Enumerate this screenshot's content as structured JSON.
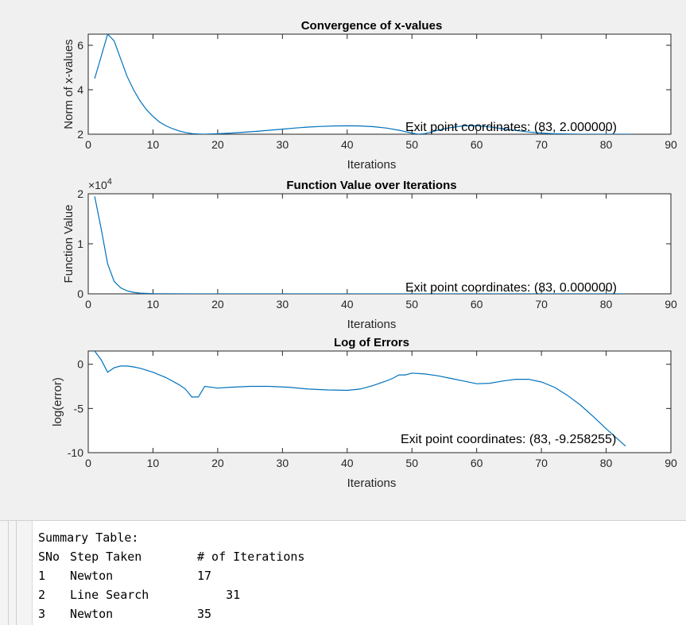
{
  "chart_data": [
    {
      "type": "line",
      "title": "Convergence of x-values",
      "xlabel": "Iterations",
      "ylabel": "Norm of x-values",
      "xlim": [
        0,
        90
      ],
      "ylim": [
        2,
        6.5
      ],
      "xticks": [
        0,
        10,
        20,
        30,
        40,
        50,
        60,
        70,
        80,
        90
      ],
      "yticks": [
        2,
        4,
        6
      ],
      "color": "#0072BD",
      "x": [
        1,
        2,
        3,
        4,
        5,
        6,
        7,
        8,
        9,
        10,
        11,
        12,
        13,
        14,
        15,
        16,
        17,
        18,
        20,
        22,
        24,
        26,
        28,
        30,
        32,
        34,
        36,
        38,
        40,
        42,
        44,
        46,
        48,
        50,
        51,
        52,
        53,
        54,
        56,
        58,
        60,
        62,
        64,
        66,
        68,
        70,
        72,
        74,
        76,
        78,
        80,
        82,
        84
      ],
      "y": [
        4.5,
        5.5,
        6.5,
        6.2,
        5.4,
        4.6,
        4.0,
        3.5,
        3.1,
        2.8,
        2.55,
        2.38,
        2.25,
        2.15,
        2.08,
        2.03,
        2.01,
        2.0,
        2.02,
        2.05,
        2.09,
        2.13,
        2.18,
        2.23,
        2.28,
        2.32,
        2.35,
        2.37,
        2.38,
        2.37,
        2.34,
        2.28,
        2.18,
        2.05,
        2.0,
        2.03,
        2.1,
        2.18,
        2.3,
        2.38,
        2.38,
        2.33,
        2.25,
        2.17,
        2.1,
        2.05,
        2.02,
        2.01,
        2.0,
        2.0,
        2.0,
        2.0,
        2.0
      ],
      "annotation": "Exit point coordinates: (83, 2.000000)"
    },
    {
      "type": "line",
      "title": "Function Value over Iterations",
      "xlabel": "Iterations",
      "ylabel": "Function Value",
      "y_multiplier": "×10",
      "y_exponent": "4",
      "xlim": [
        0,
        90
      ],
      "ylim": [
        0,
        2
      ],
      "xticks": [
        0,
        10,
        20,
        30,
        40,
        50,
        60,
        70,
        80,
        90
      ],
      "yticks": [
        0,
        1,
        2
      ],
      "color": "#0072BD",
      "x": [
        1,
        2,
        3,
        4,
        5,
        6,
        7,
        8,
        10,
        12,
        15,
        20,
        30,
        40,
        50,
        60,
        70,
        80,
        83
      ],
      "y": [
        1.95,
        1.3,
        0.6,
        0.25,
        0.12,
        0.06,
        0.03,
        0.015,
        0.005,
        0.002,
        0.0005,
        0,
        0,
        0,
        0,
        0,
        0,
        0,
        0
      ],
      "annotation": "Exit point coordinates: (83, 0.000000)"
    },
    {
      "type": "line",
      "title": "Log of Errors",
      "xlabel": "Iterations",
      "ylabel": "log(error)",
      "xlim": [
        0,
        90
      ],
      "ylim": [
        -10,
        1.5
      ],
      "xticks": [
        0,
        10,
        20,
        30,
        40,
        50,
        60,
        70,
        80,
        90
      ],
      "yticks": [
        -10,
        -5,
        0
      ],
      "color": "#0072BD",
      "x": [
        1,
        2,
        3,
        4,
        5,
        6,
        7,
        8,
        10,
        12,
        14,
        15,
        16,
        17,
        18,
        20,
        22,
        25,
        28,
        31,
        34,
        37,
        40,
        42,
        44,
        46,
        47,
        48,
        49,
        50,
        52,
        54,
        56,
        58,
        60,
        62,
        64,
        66,
        68,
        70,
        72,
        74,
        76,
        78,
        80,
        82,
        83
      ],
      "y": [
        1.5,
        0.5,
        -0.9,
        -0.4,
        -0.2,
        -0.2,
        -0.3,
        -0.45,
        -0.9,
        -1.5,
        -2.3,
        -2.8,
        -3.7,
        -3.7,
        -2.5,
        -2.7,
        -2.6,
        -2.5,
        -2.5,
        -2.6,
        -2.8,
        -2.9,
        -2.95,
        -2.8,
        -2.4,
        -1.9,
        -1.6,
        -1.2,
        -1.2,
        -1.0,
        -1.1,
        -1.3,
        -1.6,
        -1.9,
        -2.2,
        -2.15,
        -1.9,
        -1.7,
        -1.7,
        -2.0,
        -2.6,
        -3.5,
        -4.6,
        -5.9,
        -7.3,
        -8.6,
        -9.26
      ],
      "annotation": "Exit point coordinates: (83, -9.258255)"
    }
  ],
  "console": {
    "heading": "Summary Table:",
    "header": {
      "c1": "SNo",
      "c2": "Step Taken",
      "c3": "# of Iterations"
    },
    "rows": [
      {
        "c1": "1",
        "c2": "Newton",
        "c3": "17"
      },
      {
        "c1": "2",
        "c2": "Line Search",
        "c3": "    31"
      },
      {
        "c1": "3",
        "c2": "Newton",
        "c3": "35"
      }
    ]
  }
}
